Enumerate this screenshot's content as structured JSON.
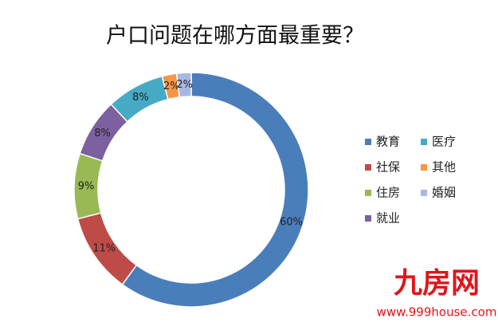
{
  "chart_data": {
    "type": "pie",
    "title": "户口问题在哪方面最重要？",
    "categories": [
      "教育",
      "社保",
      "住房",
      "就业",
      "医疗",
      "其他",
      "婚姻"
    ],
    "values": [
      60,
      11,
      9,
      8,
      8,
      2,
      2
    ],
    "value_labels": [
      "60%",
      "11%",
      "9%",
      "8%",
      "8%",
      "2%",
      "2%"
    ],
    "colors": [
      "#4a7ebb",
      "#be4b48",
      "#98b954",
      "#7d60a0",
      "#46aac5",
      "#f79646",
      "#a7b9e3"
    ],
    "donut": true,
    "legend": "right"
  },
  "watermark": {
    "brand": "九房网",
    "url": "www.999house.com"
  }
}
